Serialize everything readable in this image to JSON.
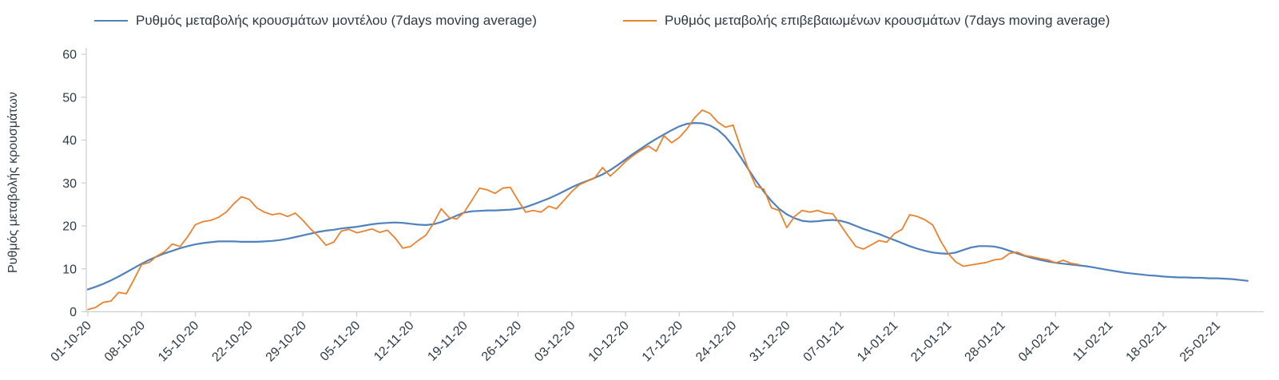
{
  "chart_data": {
    "type": "line",
    "title": "",
    "xlabel": "",
    "ylabel": "Ρυθμός μεταβολής κρουσμάτων",
    "ylim": [
      0,
      60
    ],
    "y_ticks": [
      0,
      10,
      20,
      30,
      40,
      50,
      60
    ],
    "grid": false,
    "legend_position": "top",
    "x_tick_interval_days": 7,
    "x_tick_labels": [
      "01-10-20",
      "08-10-20",
      "15-10-20",
      "22-10-20",
      "29-10-20",
      "05-11-20",
      "12-11-20",
      "19-11-20",
      "26-11-20",
      "03-12-20",
      "10-12-20",
      "17-12-20",
      "24-12-20",
      "31-12-20",
      "07-01-21",
      "14-01-21",
      "21-01-21",
      "28-01-21",
      "04-02-21",
      "11-02-21",
      "18-02-21",
      "25-02-21"
    ],
    "series": [
      {
        "name": "Ρυθμός μεταβολής κρουσμάτων μοντέλου (7days moving average)",
        "color": "#4f81bd",
        "start_day": 0,
        "values": [
          5.2,
          5.8,
          6.5,
          7.3,
          8.2,
          9.2,
          10.2,
          11.2,
          12.1,
          12.9,
          13.6,
          14.2,
          14.8,
          15.3,
          15.7,
          16.0,
          16.2,
          16.4,
          16.4,
          16.4,
          16.3,
          16.3,
          16.3,
          16.4,
          16.5,
          16.7,
          17.0,
          17.4,
          17.8,
          18.2,
          18.6,
          18.9,
          19.1,
          19.4,
          19.6,
          19.8,
          20.1,
          20.4,
          20.6,
          20.7,
          20.8,
          20.7,
          20.5,
          20.3,
          20.2,
          20.4,
          20.9,
          21.6,
          22.4,
          23.1,
          23.4,
          23.5,
          23.6,
          23.6,
          23.7,
          23.8,
          24.0,
          24.4,
          25.0,
          25.7,
          26.4,
          27.2,
          28.1,
          29.0,
          29.8,
          30.5,
          31.2,
          32.0,
          33.0,
          34.2,
          35.5,
          36.8,
          38.0,
          39.2,
          40.3,
          41.3,
          42.3,
          43.2,
          43.8,
          44.0,
          43.9,
          43.4,
          42.4,
          40.8,
          38.6,
          36.0,
          33.2,
          30.5,
          28.0,
          25.8,
          24.0,
          22.7,
          21.8,
          21.2,
          21.0,
          21.1,
          21.3,
          21.4,
          21.2,
          20.7,
          20.0,
          19.3,
          18.7,
          18.1,
          17.4,
          16.7,
          16.0,
          15.3,
          14.7,
          14.2,
          13.8,
          13.6,
          13.5,
          13.8,
          14.4,
          15.0,
          15.3,
          15.3,
          15.2,
          14.8,
          14.2,
          13.6,
          13.0,
          12.5,
          12.1,
          11.7,
          11.4,
          11.2,
          11.0,
          10.8,
          10.6,
          10.3,
          10.0,
          9.7,
          9.4,
          9.1,
          8.9,
          8.7,
          8.5,
          8.4,
          8.2,
          8.1,
          8.0,
          8.0,
          7.9,
          7.9,
          7.8,
          7.8,
          7.7,
          7.6,
          7.4,
          7.2
        ]
      },
      {
        "name": "Ρυθμός μεταβολής επιβεβαιωμένων κρουσμάτων (7days moving average)",
        "color": "#e8822d",
        "start_day": 0,
        "values": [
          0.5,
          1.0,
          2.2,
          2.5,
          4.5,
          4.2,
          7.5,
          11.0,
          11.5,
          13.0,
          14.0,
          15.8,
          15.2,
          17.5,
          20.3,
          21.0,
          21.3,
          22.0,
          23.2,
          25.2,
          26.8,
          26.2,
          24.2,
          23.2,
          22.6,
          22.9,
          22.2,
          23.0,
          21.3,
          19.3,
          17.6,
          15.5,
          16.2,
          18.8,
          19.2,
          18.4,
          18.8,
          19.3,
          18.5,
          19.0,
          17.2,
          14.8,
          15.2,
          16.6,
          17.8,
          20.6,
          24.0,
          22.0,
          21.6,
          23.2,
          26.0,
          28.8,
          28.4,
          27.6,
          28.8,
          29.0,
          26.0,
          23.2,
          23.6,
          23.2,
          24.6,
          24.0,
          26.0,
          28.0,
          29.6,
          30.4,
          31.2,
          33.6,
          31.6,
          33.2,
          35.0,
          36.4,
          37.6,
          38.6,
          37.4,
          41.0,
          39.4,
          40.6,
          42.6,
          45.2,
          47.0,
          46.2,
          44.2,
          43.0,
          43.5,
          38.2,
          33.2,
          29.2,
          28.6,
          24.2,
          23.6,
          19.6,
          22.2,
          23.6,
          23.2,
          23.6,
          23.0,
          22.8,
          20.2,
          17.6,
          15.2,
          14.6,
          15.6,
          16.6,
          16.2,
          18.2,
          19.2,
          22.6,
          22.2,
          21.4,
          20.2,
          16.6,
          13.6,
          11.6,
          10.6,
          10.9,
          11.2,
          11.5,
          12.1,
          12.3,
          13.6,
          13.9,
          13.1,
          12.8,
          12.4,
          12.1,
          11.4,
          12.0,
          11.3,
          11.0
        ]
      }
    ]
  },
  "colors": {
    "model_line": "#4f81bd",
    "confirmed_line": "#e8822d",
    "axis": "#c9ced4",
    "text": "#2d3a46"
  }
}
